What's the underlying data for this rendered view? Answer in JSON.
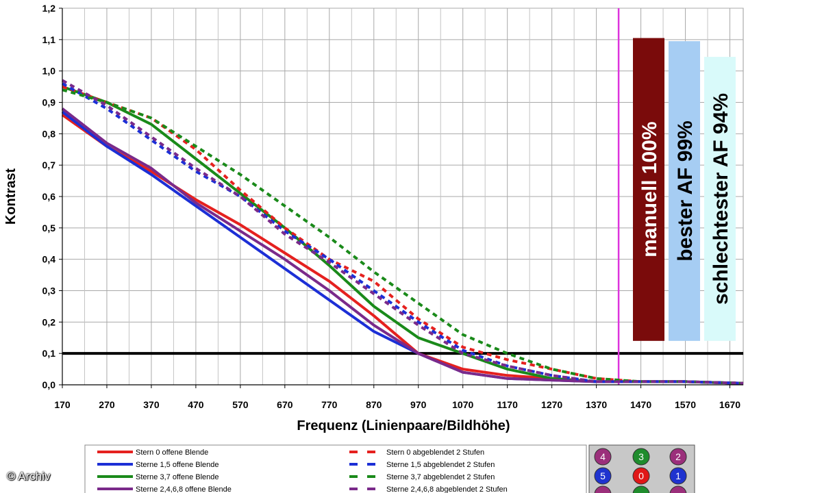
{
  "chart_data": {
    "type": "line",
    "xlabel": "Frequenz (Linienpaare/Bildhöhe)",
    "ylabel": "Kontrast",
    "xlim": [
      170,
      1700
    ],
    "ylim": [
      0,
      1.2
    ],
    "x_ticks": [
      170,
      270,
      370,
      470,
      570,
      670,
      770,
      870,
      970,
      1070,
      1170,
      1270,
      1370,
      1470,
      1570,
      1670
    ],
    "y_ticks": [
      "0,0",
      "0,1",
      "0,2",
      "0,3",
      "0,4",
      "0,5",
      "0,6",
      "0,7",
      "0,8",
      "0,9",
      "1,0",
      "1,1",
      "1,2"
    ],
    "y_tick_values": [
      0,
      0.1,
      0.2,
      0.3,
      0.4,
      0.5,
      0.6,
      0.7,
      0.8,
      0.9,
      1.0,
      1.1,
      1.2
    ],
    "grid": true,
    "reference_line": {
      "y": 0.1,
      "color": "#000000"
    },
    "focus_line": {
      "x": 1420,
      "color": "#dd33dd"
    },
    "series": [
      {
        "name": "Stern 0 offene Blende",
        "color": "#e5211f",
        "dashed": false,
        "x": [
          170,
          270,
          370,
          470,
          570,
          670,
          770,
          870,
          970,
          1070,
          1170,
          1270,
          1370,
          1470,
          1570,
          1700
        ],
        "y": [
          0.86,
          0.76,
          0.68,
          0.59,
          0.51,
          0.42,
          0.33,
          0.22,
          0.1,
          0.05,
          0.03,
          0.02,
          0.01,
          0.01,
          0.01,
          0.005
        ]
      },
      {
        "name": "Sterne 1,5 offene Blende",
        "color": "#1c2fd6",
        "dashed": false,
        "x": [
          170,
          270,
          370,
          470,
          570,
          670,
          770,
          870,
          970,
          1070,
          1170,
          1270,
          1370,
          1470,
          1570,
          1700
        ],
        "y": [
          0.87,
          0.76,
          0.67,
          0.57,
          0.47,
          0.37,
          0.27,
          0.17,
          0.1,
          0.04,
          0.02,
          0.015,
          0.01,
          0.01,
          0.01,
          0.005
        ]
      },
      {
        "name": "Sterne 3,7 offene Blende",
        "color": "#1a8a1a",
        "dashed": false,
        "x": [
          170,
          270,
          370,
          470,
          570,
          670,
          770,
          870,
          970,
          1070,
          1170,
          1270,
          1370,
          1470,
          1570,
          1700
        ],
        "y": [
          0.95,
          0.9,
          0.83,
          0.72,
          0.61,
          0.5,
          0.38,
          0.25,
          0.15,
          0.1,
          0.05,
          0.02,
          0.01,
          0.01,
          0.01,
          0.005
        ]
      },
      {
        "name": "Sterne 2,4,6,8 offene Blende",
        "color": "#7a2a8a",
        "dashed": false,
        "x": [
          170,
          270,
          370,
          470,
          570,
          670,
          770,
          870,
          970,
          1070,
          1170,
          1270,
          1370,
          1470,
          1570,
          1700
        ],
        "y": [
          0.88,
          0.77,
          0.69,
          0.58,
          0.49,
          0.4,
          0.3,
          0.19,
          0.1,
          0.04,
          0.02,
          0.015,
          0.01,
          0.01,
          0.01,
          0.005
        ]
      },
      {
        "name": "Stern 0 abgeblendet 2 Stufen",
        "color": "#e5211f",
        "dashed": true,
        "x": [
          170,
          270,
          370,
          470,
          570,
          670,
          770,
          870,
          970,
          1070,
          1170,
          1270,
          1370,
          1470,
          1570,
          1700
        ],
        "y": [
          0.95,
          0.9,
          0.85,
          0.75,
          0.62,
          0.5,
          0.4,
          0.33,
          0.21,
          0.12,
          0.08,
          0.05,
          0.02,
          0.01,
          0.01,
          0.005
        ]
      },
      {
        "name": "Sterne 1,5 abgeblendet 2 Stufen",
        "color": "#1c2fd6",
        "dashed": true,
        "x": [
          170,
          270,
          370,
          470,
          570,
          670,
          770,
          870,
          970,
          1070,
          1170,
          1270,
          1370,
          1470,
          1570,
          1700
        ],
        "y": [
          0.96,
          0.88,
          0.78,
          0.68,
          0.6,
          0.49,
          0.4,
          0.3,
          0.2,
          0.11,
          0.06,
          0.03,
          0.01,
          0.01,
          0.01,
          0.005
        ]
      },
      {
        "name": "Sterne 3,7 abgeblendet 2 Stufen",
        "color": "#1a8a1a",
        "dashed": true,
        "x": [
          170,
          270,
          370,
          470,
          570,
          670,
          770,
          870,
          970,
          1070,
          1170,
          1270,
          1370,
          1470,
          1570,
          1700
        ],
        "y": [
          0.94,
          0.9,
          0.85,
          0.76,
          0.67,
          0.57,
          0.47,
          0.36,
          0.26,
          0.16,
          0.1,
          0.05,
          0.02,
          0.01,
          0.01,
          0.005
        ]
      },
      {
        "name": "Sterne 2,4,6,8 abgeblendet 2 Stufen",
        "color": "#7a2a8a",
        "dashed": true,
        "x": [
          170,
          270,
          370,
          470,
          570,
          670,
          770,
          870,
          970,
          1070,
          1170,
          1270,
          1370,
          1470,
          1570,
          1700
        ],
        "y": [
          0.97,
          0.89,
          0.79,
          0.69,
          0.6,
          0.48,
          0.39,
          0.29,
          0.19,
          0.1,
          0.06,
          0.03,
          0.01,
          0.01,
          0.01,
          0.005
        ]
      }
    ],
    "bars": [
      {
        "label": "manuell 100%",
        "value": 1.105,
        "color": "#7a0b0b",
        "text_color": "#ffffff"
      },
      {
        "label": "bester AF 99%",
        "value": 1.095,
        "color": "#a6cdf3",
        "text_color": "#000000"
      },
      {
        "label": "schlechtester AF 94%",
        "value": 1.045,
        "color": "#d9fafa",
        "text_color": "#000000"
      }
    ],
    "bars_baseline": 0.14,
    "star_markers": [
      {
        "label": "4",
        "color": "#9b2f7b"
      },
      {
        "label": "3",
        "color": "#1f8c2d"
      },
      {
        "label": "2",
        "color": "#9b2f7b"
      },
      {
        "label": "5",
        "color": "#1f33cf"
      },
      {
        "label": "0",
        "color": "#e01717"
      },
      {
        "label": "1",
        "color": "#1f33cf"
      },
      {
        "label": "",
        "color": "#9b2f7b"
      },
      {
        "label": "",
        "color": "#1f8c2d"
      },
      {
        "label": "",
        "color": "#9b2f7b"
      }
    ]
  },
  "credit": "© Archiv"
}
